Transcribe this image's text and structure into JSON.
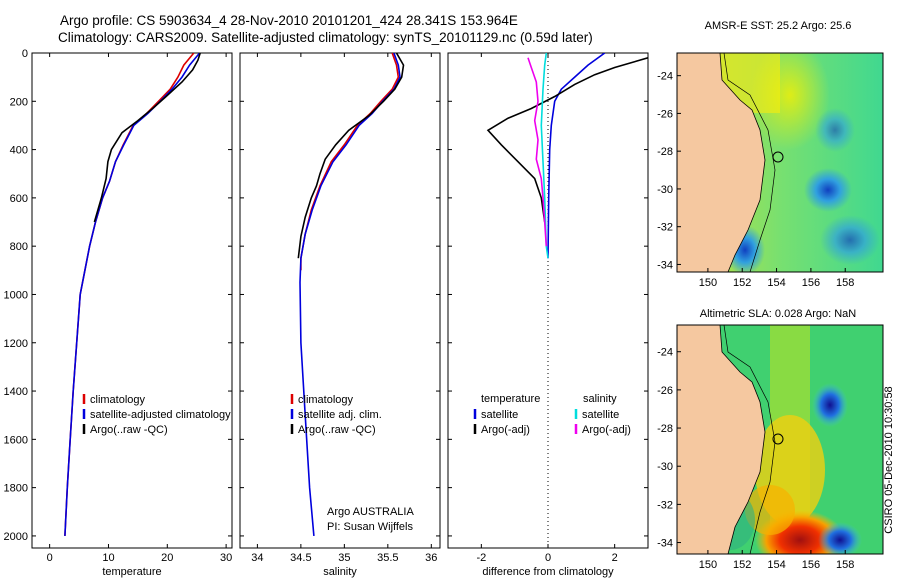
{
  "title_line1": "Argo profile: CS 5903634_4 28-Nov-2010 20101201_424 28.341S 153.964E",
  "title_line2": "Climatology: CARS2009. Satellite-adjusted climatology: synTS_20101129.nc (0.59d later)",
  "side_label": "CSIRO 05-Dec-2010 10:30:58",
  "chart_data": [
    {
      "type": "line",
      "xlabel": "temperature",
      "xlim": [
        -3,
        31
      ],
      "ylim": [
        2050,
        0
      ],
      "xticks": [
        0,
        10,
        20,
        30
      ],
      "yticks": [
        0,
        200,
        400,
        600,
        800,
        1000,
        1200,
        1400,
        1600,
        1800,
        2000
      ],
      "legend": [
        "climatology",
        "satellite-adjusted climatology",
        "Argo(..raw -QC)"
      ],
      "series": [
        {
          "name": "climatology",
          "color": "#dd0000",
          "points": [
            [
              24.5,
              0
            ],
            [
              22.8,
              50
            ],
            [
              21.8,
              100
            ],
            [
              20.5,
              150
            ],
            [
              18.5,
              200
            ],
            [
              16.5,
              250
            ],
            [
              14.2,
              300
            ],
            [
              12.5,
              380
            ],
            [
              11.2,
              450
            ],
            [
              10.2,
              530
            ],
            [
              9.0,
              600
            ],
            [
              7.8,
              700
            ],
            [
              6.8,
              800
            ],
            [
              6.0,
              900
            ],
            [
              5.2,
              1000
            ],
            [
              4.6,
              1200
            ],
            [
              4.0,
              1400
            ],
            [
              3.5,
              1600
            ],
            [
              3.0,
              1800
            ],
            [
              2.6,
              2000
            ]
          ]
        },
        {
          "name": "satellite-adjusted climatology",
          "color": "#0000dd",
          "points": [
            [
              25.5,
              0
            ],
            [
              23.8,
              50
            ],
            [
              22.5,
              100
            ],
            [
              20.8,
              150
            ],
            [
              18.8,
              200
            ],
            [
              16.7,
              250
            ],
            [
              14.3,
              300
            ],
            [
              12.6,
              380
            ],
            [
              11.2,
              450
            ],
            [
              10.2,
              530
            ],
            [
              9.0,
              600
            ],
            [
              7.8,
              700
            ],
            [
              6.8,
              800
            ],
            [
              6.0,
              900
            ],
            [
              5.2,
              1000
            ],
            [
              4.6,
              1200
            ],
            [
              4.0,
              1400
            ],
            [
              3.5,
              1600
            ],
            [
              3.0,
              1800
            ],
            [
              2.6,
              2000
            ]
          ]
        },
        {
          "name": "Argo(..raw -QC)",
          "color": "#000000",
          "points": [
            [
              25.6,
              0
            ],
            [
              25.2,
              30
            ],
            [
              24.3,
              70
            ],
            [
              22.5,
              120
            ],
            [
              19.8,
              180
            ],
            [
              17.5,
              230
            ],
            [
              15.0,
              280
            ],
            [
              12.3,
              330
            ],
            [
              10.5,
              400
            ],
            [
              9.9,
              450
            ],
            [
              9.6,
              520
            ],
            [
              8.8,
              600
            ],
            [
              7.6,
              700
            ]
          ]
        }
      ]
    },
    {
      "type": "line",
      "xlabel": "salinity",
      "xlim": [
        33.8,
        36.1
      ],
      "ylim": [
        2050,
        0
      ],
      "xticks": [
        34,
        34.5,
        35,
        35.5,
        36
      ],
      "legend": [
        "climatology",
        "satellite adj. clim.",
        "Argo(..raw -QC)"
      ],
      "annotation": [
        "Argo AUSTRALIA",
        "PI: Susan Wijffels"
      ],
      "series": [
        {
          "name": "climatology",
          "color": "#dd0000",
          "points": [
            [
              35.55,
              0
            ],
            [
              35.6,
              50
            ],
            [
              35.62,
              100
            ],
            [
              35.55,
              150
            ],
            [
              35.42,
              200
            ],
            [
              35.3,
              250
            ],
            [
              35.15,
              300
            ],
            [
              35.0,
              380
            ],
            [
              34.85,
              450
            ],
            [
              34.72,
              550
            ],
            [
              34.62,
              650
            ],
            [
              34.55,
              750
            ],
            [
              34.5,
              850
            ],
            [
              34.5,
              900
            ]
          ]
        },
        {
          "name": "satellite-adjusted climatology",
          "color": "#0000dd",
          "points": [
            [
              35.57,
              0
            ],
            [
              35.62,
              50
            ],
            [
              35.64,
              100
            ],
            [
              35.57,
              150
            ],
            [
              35.44,
              200
            ],
            [
              35.32,
              250
            ],
            [
              35.17,
              300
            ],
            [
              35.02,
              380
            ],
            [
              34.87,
              450
            ],
            [
              34.73,
              550
            ],
            [
              34.63,
              650
            ],
            [
              34.55,
              750
            ],
            [
              34.5,
              850
            ],
            [
              34.49,
              950
            ],
            [
              34.5,
              1200
            ],
            [
              34.55,
              1500
            ],
            [
              34.6,
              1800
            ],
            [
              34.65,
              2000
            ]
          ]
        },
        {
          "name": "Argo(..raw -QC)",
          "color": "#000000",
          "points": [
            [
              35.6,
              0
            ],
            [
              35.68,
              50
            ],
            [
              35.66,
              100
            ],
            [
              35.58,
              150
            ],
            [
              35.45,
              200
            ],
            [
              35.28,
              260
            ],
            [
              35.05,
              320
            ],
            [
              34.9,
              380
            ],
            [
              34.78,
              440
            ],
            [
              34.72,
              500
            ],
            [
              34.68,
              550
            ],
            [
              34.62,
              600
            ],
            [
              34.55,
              680
            ],
            [
              34.5,
              760
            ],
            [
              34.47,
              850
            ]
          ]
        }
      ]
    },
    {
      "type": "line",
      "xlabel": "difference from climatology",
      "xlim": [
        -3.0,
        3.0
      ],
      "ylim": [
        2050,
        0
      ],
      "xticks": [
        -2,
        0,
        2
      ],
      "legend_headers": [
        "temperature",
        "salinity"
      ],
      "legend": [
        "satellite",
        "Argo(-adj)",
        "satellite",
        "Argo(-adj)"
      ],
      "series": [
        {
          "name": "satellite",
          "color": "#0000dd",
          "points": [
            [
              1.7,
              0
            ],
            [
              1.2,
              50
            ],
            [
              0.8,
              100
            ],
            [
              0.4,
              150
            ],
            [
              0.2,
              200
            ],
            [
              0.1,
              300
            ],
            [
              0.05,
              400
            ],
            [
              0.02,
              600
            ],
            [
              0.0,
              850
            ]
          ]
        },
        {
          "name": "Argo(-adj)",
          "color": "#000000",
          "points": [
            [
              3.0,
              20
            ],
            [
              2.0,
              60
            ],
            [
              1.4,
              90
            ],
            [
              0.8,
              130
            ],
            [
              0.2,
              180
            ],
            [
              -0.5,
              230
            ],
            [
              -1.2,
              270
            ],
            [
              -1.8,
              320
            ],
            [
              -1.4,
              380
            ],
            [
              -0.9,
              450
            ],
            [
              -0.4,
              520
            ],
            [
              -0.2,
              600
            ],
            [
              -0.1,
              700
            ]
          ]
        },
        {
          "name": "satellite",
          "color": "#00dddd",
          "points": [
            [
              -0.05,
              0
            ],
            [
              -0.1,
              50
            ],
            [
              -0.15,
              150
            ],
            [
              -0.2,
              300
            ],
            [
              -0.15,
              450
            ],
            [
              -0.1,
              600
            ],
            [
              -0.05,
              800
            ],
            [
              0.0,
              850
            ]
          ]
        },
        {
          "name": "Argo(-adj)",
          "color": "#ee00ee",
          "points": [
            [
              -0.6,
              20
            ],
            [
              -0.5,
              60
            ],
            [
              -0.35,
              120
            ],
            [
              -0.3,
              200
            ],
            [
              -0.4,
              280
            ],
            [
              -0.3,
              360
            ],
            [
              -0.35,
              440
            ],
            [
              -0.2,
              520
            ],
            [
              -0.15,
              600
            ],
            [
              -0.1,
              700
            ],
            [
              -0.05,
              800
            ]
          ]
        }
      ]
    }
  ],
  "map_top": {
    "title": "AMSR-E SST: 25.2 Argo: 25.6",
    "yticks": [
      -24,
      -26,
      -28,
      -30,
      -32,
      -34
    ],
    "xticks": [
      150,
      152,
      154,
      156,
      158
    ],
    "profile_lat": -28.341,
    "profile_lon": 153.964
  },
  "map_bottom": {
    "title": "Altimetric SLA: 0.028 Argo: NaN",
    "yticks": [
      -24,
      -26,
      -28,
      -30,
      -32,
      -34
    ],
    "xticks": [
      150,
      152,
      154,
      156,
      158
    ],
    "profile_lat": -28.341,
    "profile_lon": 153.964
  }
}
